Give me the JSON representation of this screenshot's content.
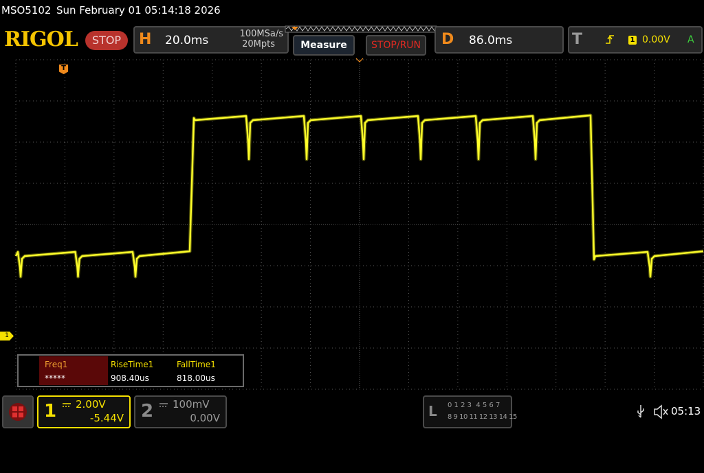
{
  "status_bar": {
    "model": "MSO5102",
    "datetime": "Sun February 01 05:14:18 2026"
  },
  "toolbar": {
    "brand": "RIGOL",
    "run_state": "STOP",
    "horizontal": {
      "label": "H",
      "timebase": "20.0ms",
      "sample_rate": "100MSa/s",
      "memory_depth": "20Mpts"
    },
    "measure_button": "Measure",
    "stop_run_button": "STOP/RUN",
    "delay": {
      "label": "D",
      "value": "86.0ms"
    },
    "trigger": {
      "label": "T",
      "source": "1",
      "level": "0.00V",
      "mode": "A"
    }
  },
  "screen": {
    "trigger_marker": "T",
    "channel_marker": "1"
  },
  "measurements": [
    {
      "name": "Freq1",
      "value": "*****"
    },
    {
      "name": "RiseTime1",
      "value": "908.40us"
    },
    {
      "name": "FallTime1",
      "value": "818.00us"
    }
  ],
  "bottom_bar": {
    "channels": [
      {
        "number": "1",
        "scale": "2.00V",
        "offset": "-5.44V"
      },
      {
        "number": "2",
        "scale": "100mV",
        "offset": "0.00V"
      }
    ],
    "logic": {
      "label": "L",
      "row1": "0 1 2 3  4 5 6 7",
      "row2": "8 9 10 11 12 13 14 15"
    },
    "clock": "05:13"
  }
}
